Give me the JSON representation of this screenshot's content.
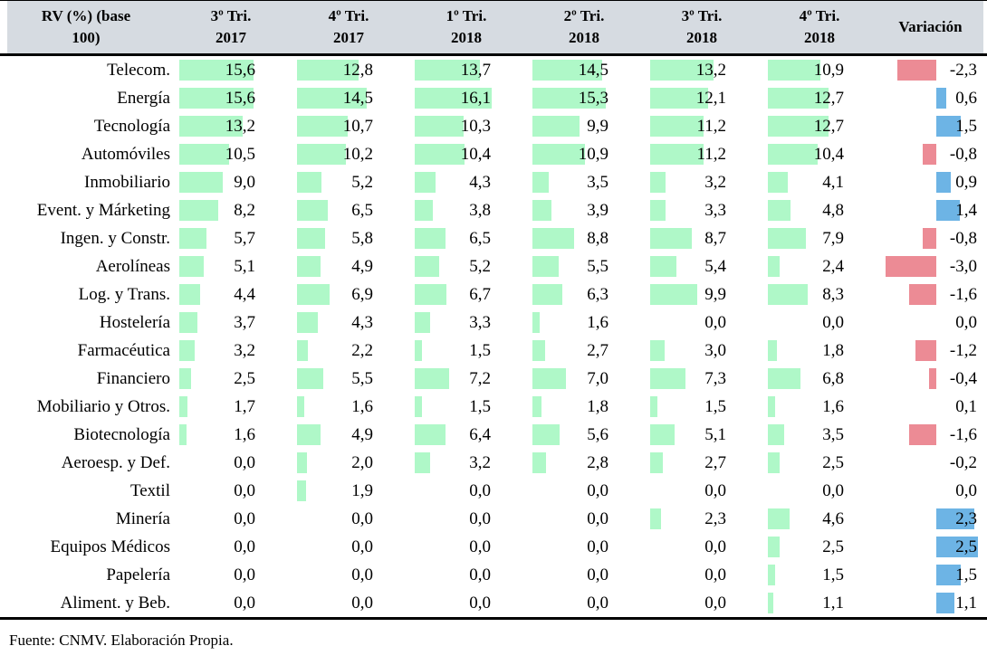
{
  "header": {
    "col0_line1": "RV (%) (base",
    "col0_line2": "100)",
    "quarters": [
      {
        "line1": "3º Tri.",
        "line2": "2017"
      },
      {
        "line1": "4º Tri.",
        "line2": "2017"
      },
      {
        "line1": "1º Tri.",
        "line2": "2018"
      },
      {
        "line1": "2º Tri.",
        "line2": "2018"
      },
      {
        "line1": "3º Tri.",
        "line2": "2018"
      },
      {
        "line1": "4º Tri.",
        "line2": "2018"
      }
    ],
    "variation_label": "Variación"
  },
  "chart_data": {
    "type": "table",
    "title": "RV (%) (base 100)",
    "columns": [
      "3º Tri. 2017",
      "4º Tri. 2017",
      "1º Tri. 2018",
      "2º Tri. 2018",
      "3º Tri. 2018",
      "4º Tri. 2018",
      "Variación"
    ],
    "decimal_separator": ",",
    "header_bg": "#d6dbe1",
    "databar_colors": {
      "positive_green": "#aff8c8",
      "variation_negative_red": "#ec8b95",
      "variation_positive_blue": "#6db4e5"
    },
    "value_axis": {
      "green_bar_max": 16.1,
      "variation_min": -3.0,
      "variation_max": 2.5
    },
    "rows": [
      {
        "label": "Telecom.",
        "values": [
          15.6,
          12.8,
          13.7,
          14.5,
          13.2,
          10.9
        ],
        "variation": -2.3
      },
      {
        "label": "Energía",
        "values": [
          15.6,
          14.5,
          16.1,
          15.3,
          12.1,
          12.7
        ],
        "variation": 0.6
      },
      {
        "label": "Tecnología",
        "values": [
          13.2,
          10.7,
          10.3,
          9.9,
          11.2,
          12.7
        ],
        "variation": 1.5
      },
      {
        "label": "Automóviles",
        "values": [
          10.5,
          10.2,
          10.4,
          10.9,
          11.2,
          10.4
        ],
        "variation": -0.8
      },
      {
        "label": "Inmobiliario",
        "values": [
          9.0,
          5.2,
          4.3,
          3.5,
          3.2,
          4.1
        ],
        "variation": 0.9
      },
      {
        "label": "Event. y Márketing",
        "values": [
          8.2,
          6.5,
          3.8,
          3.9,
          3.3,
          4.8
        ],
        "variation": 1.4
      },
      {
        "label": "Ingen. y Constr.",
        "values": [
          5.7,
          5.8,
          6.5,
          8.8,
          8.7,
          7.9
        ],
        "variation": -0.8
      },
      {
        "label": "Aerolíneas",
        "values": [
          5.1,
          4.9,
          5.2,
          5.5,
          5.4,
          2.4
        ],
        "variation": -3.0
      },
      {
        "label": "Log. y Trans.",
        "values": [
          4.4,
          6.9,
          6.7,
          6.3,
          9.9,
          8.3
        ],
        "variation": -1.6
      },
      {
        "label": "Hostelería",
        "values": [
          3.7,
          4.3,
          3.3,
          1.6,
          0.0,
          0.0
        ],
        "variation": 0.0
      },
      {
        "label": "Farmacéutica",
        "values": [
          3.2,
          2.2,
          1.5,
          2.7,
          3.0,
          1.8
        ],
        "variation": -1.2
      },
      {
        "label": "Financiero",
        "values": [
          2.5,
          5.5,
          7.2,
          7.0,
          7.3,
          6.8
        ],
        "variation": -0.4
      },
      {
        "label": "Mobiliario y Otros.",
        "values": [
          1.7,
          1.6,
          1.5,
          1.8,
          1.5,
          1.6
        ],
        "variation": 0.1
      },
      {
        "label": "Biotecnología",
        "values": [
          1.6,
          4.9,
          6.4,
          5.6,
          5.1,
          3.5
        ],
        "variation": -1.6
      },
      {
        "label": "Aeroesp. y Def.",
        "values": [
          0.0,
          2.0,
          3.2,
          2.8,
          2.7,
          2.5
        ],
        "variation": -0.2
      },
      {
        "label": "Textil",
        "values": [
          0.0,
          1.9,
          0.0,
          0.0,
          0.0,
          0.0
        ],
        "variation": 0.0
      },
      {
        "label": "Minería",
        "values": [
          0.0,
          0.0,
          0.0,
          0.0,
          2.3,
          4.6
        ],
        "variation": 2.3
      },
      {
        "label": "Equipos Médicos",
        "values": [
          0.0,
          0.0,
          0.0,
          0.0,
          0.0,
          2.5
        ],
        "variation": 2.5
      },
      {
        "label": "Papelería",
        "values": [
          0.0,
          0.0,
          0.0,
          0.0,
          0.0,
          1.5
        ],
        "variation": 1.5
      },
      {
        "label": "Aliment. y Beb.",
        "values": [
          0.0,
          0.0,
          0.0,
          0.0,
          0.0,
          1.1
        ],
        "variation": 1.1
      }
    ]
  },
  "footer": {
    "source": "Fuente: CNMV. Elaboración Propia."
  }
}
